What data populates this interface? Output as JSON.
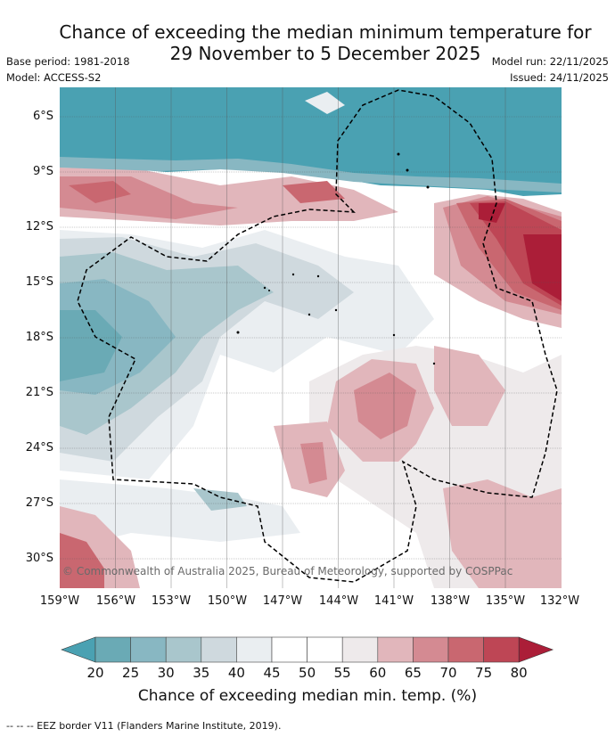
{
  "header": {
    "title_line1": "Chance of exceeding the median minimum temperature for",
    "title_line2": "29 November to 5 December 2025",
    "base_period": "Base period: 1981-2018",
    "model": "Model: ACCESS-S2",
    "model_run": "Model run: 22/11/2025",
    "issued": "Issued: 24/11/2025"
  },
  "map": {
    "lat_labels": [
      "6°S",
      "9°S",
      "12°S",
      "15°S",
      "18°S",
      "21°S",
      "24°S",
      "27°S",
      "30°S"
    ],
    "lon_labels": [
      "159°W",
      "156°W",
      "153°W",
      "150°W",
      "147°W",
      "144°W",
      "141°W",
      "138°W",
      "135°W",
      "132°W"
    ],
    "copyright": "© Commonwealth of Australia 2025, Bureau of Meteorology, supported by COSPPac"
  },
  "colorbar": {
    "ticks": [
      "20",
      "25",
      "30",
      "35",
      "40",
      "45",
      "50",
      "55",
      "60",
      "65",
      "70",
      "75",
      "80"
    ],
    "colors": [
      "#6aaab5",
      "#88b7c2",
      "#a9c6cc",
      "#cfd9de",
      "#eaeef1",
      "#ffffff",
      "#ffffff",
      "#eeeaeb",
      "#e1b6bb",
      "#d48a92",
      "#c96770",
      "#be4655"
    ],
    "under_color": "#4aa1b2",
    "over_color": "#ab1e38",
    "label": "Chance of exceeding median min. temp. (%)"
  },
  "footer": "--  --  -- EEZ border V11 (Flanders Marine Institute, 2019)."
}
